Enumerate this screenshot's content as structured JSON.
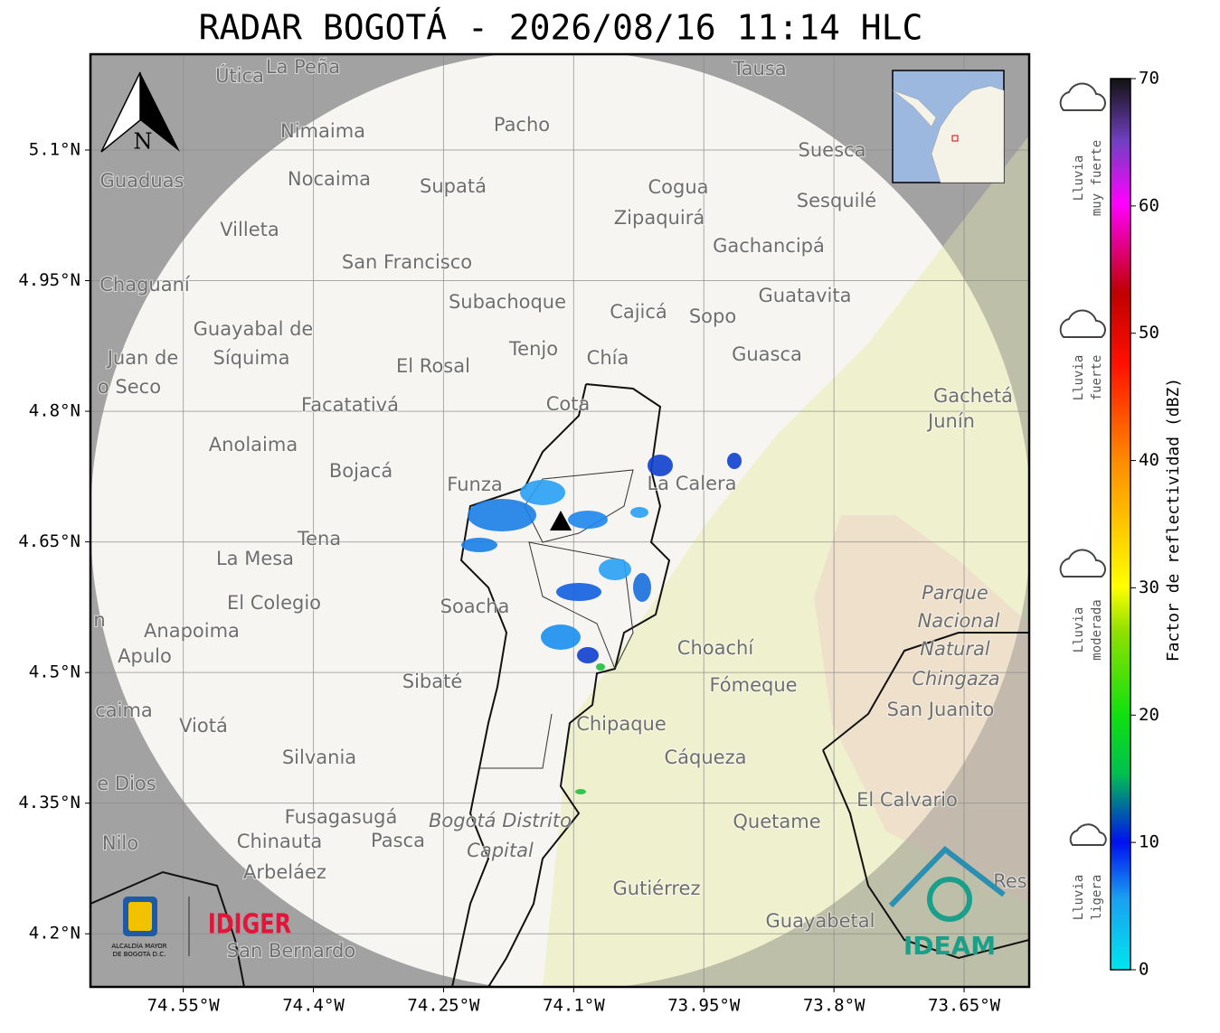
{
  "title": "RADAR BOGOTÁ - 2026/08/16 11:14 HLC",
  "map": {
    "xlim": [
      -74.657,
      -73.575
    ],
    "ylim": [
      4.139,
      5.21
    ],
    "xticks": [
      {
        "value": -74.55,
        "label": "74.55°W"
      },
      {
        "value": -74.4,
        "label": "74.4°W"
      },
      {
        "value": -74.25,
        "label": "74.25°W"
      },
      {
        "value": -74.1,
        "label": "74.1°W"
      },
      {
        "value": -73.95,
        "label": "73.95°W"
      },
      {
        "value": -73.8,
        "label": "73.8°W"
      },
      {
        "value": -73.65,
        "label": "73.65°W"
      }
    ],
    "yticks": [
      {
        "value": 5.1,
        "label": "5.1°N"
      },
      {
        "value": 4.95,
        "label": "4.95°N"
      },
      {
        "value": 4.8,
        "label": "4.8°N"
      },
      {
        "value": 4.65,
        "label": "4.65°N"
      },
      {
        "value": 4.5,
        "label": "4.5°N"
      },
      {
        "value": 4.35,
        "label": "4.35°N"
      },
      {
        "value": 4.2,
        "label": "4.2°N"
      }
    ],
    "grid": true,
    "north": "N",
    "places": [
      "Útica",
      "La Peña",
      "Tausa",
      "Pacho",
      "Nimaima",
      "Guaduas",
      "Nocaima",
      "Supatá",
      "Cogua",
      "Suesca",
      "Sesquilé",
      "Villeta",
      "Zipaquirá",
      "Gachancipá",
      "San Francisco",
      "Chaguaní",
      "Subachoque",
      "Cajicá",
      "Sopo",
      "Guatavita",
      "Guayabal de",
      "Síquima",
      "Juan de",
      "o Seco",
      "Tenjo",
      "El Rosal",
      "Chía",
      "Guasca",
      "Facatativá",
      "Cota",
      "Gachetá",
      "Junín",
      "Anolaima",
      "Bojacá",
      "Funza",
      "La Calera",
      "Tena",
      "La Mesa",
      "Soacha",
      "El Colegio",
      "Parque",
      "Nacional",
      "Natural",
      "Chingaza",
      "n",
      "Anapoima",
      "Apulo",
      "Choachí",
      "Fómeque",
      "San Juanito",
      "Sibaté",
      "caima",
      "Viotá",
      "Chipaque",
      "Silvania",
      "Cáqueza",
      "e Dios",
      "El Calvario",
      "Fusagasugá",
      "Bogotá Distrito",
      "Capital",
      "Quetame",
      "Nilo",
      "Chinauta",
      "Pasca",
      "Arbeláez",
      "Res",
      "Gutiérrez",
      "Guayabetal",
      "San Bernardo"
    ]
  },
  "colorbar": {
    "label": "Factor de reflectividad (dBZ)",
    "lim": [
      0,
      70
    ],
    "ticks": [
      0,
      10,
      20,
      30,
      40,
      50,
      60,
      70
    ]
  },
  "intensity": [
    [
      "Lluvia",
      "muy fuerte"
    ],
    [
      "Lluvia",
      "fuerte"
    ],
    [
      "Lluvia",
      "moderada"
    ],
    [
      "Lluvia",
      "ligera"
    ]
  ],
  "logos": {
    "alcaldia": [
      "ALCALDÍA MAYOR",
      "DE BOGOTÁ D.C."
    ],
    "idiger": "IDIGER",
    "ideam": "IDEAM"
  }
}
